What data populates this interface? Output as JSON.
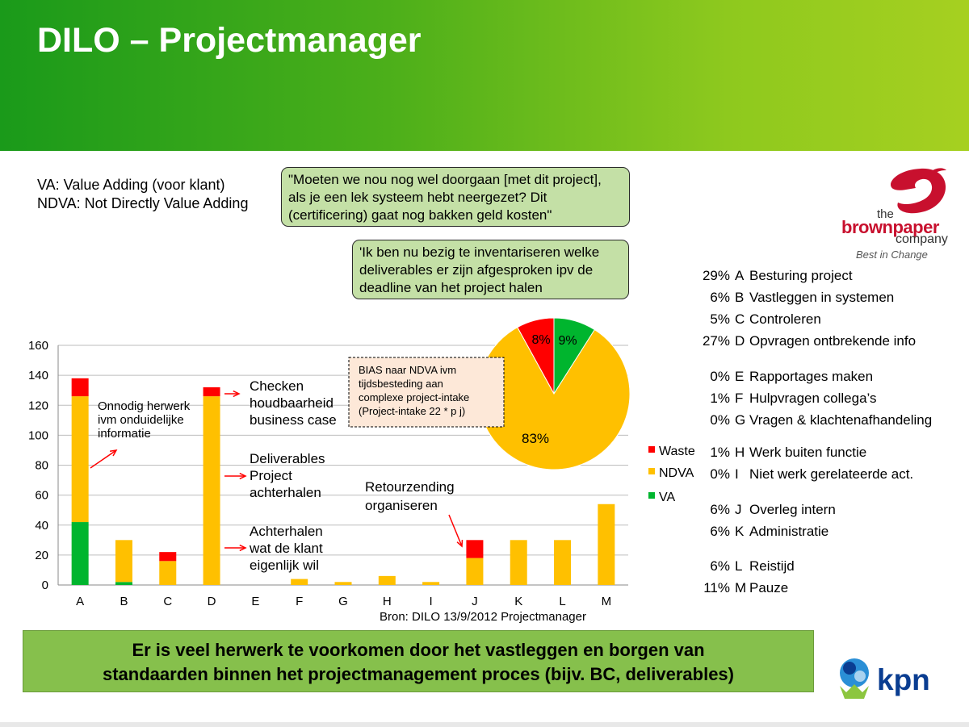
{
  "header": {
    "title": "DILO – Projectmanager"
  },
  "definitions": {
    "va": "VA: Value Adding (voor klant)",
    "ndva": "NDVA: Not Directly Value Adding"
  },
  "quotes": {
    "q1": "\"Moeten we nou nog wel doorgaan [met dit project], als je een lek systeem hebt neergezet? Dit (certificering) gaat nog bakken geld kosten\"",
    "q2": "'Ik ben nu bezig te inventariseren  welke deliverables er zijn afgesproken ipv de deadline van het project halen"
  },
  "logo": {
    "the": "the",
    "brown": "brownpaper",
    "company": "company",
    "tagline": "Best in Change",
    "brand_color": "#c8102e"
  },
  "activities": [
    {
      "pct": "29%",
      "code": "A",
      "label": "Besturing project"
    },
    {
      "pct": "6%",
      "code": "B",
      "label": "Vastleggen in systemen"
    },
    {
      "pct": "5%",
      "code": "C",
      "label": "Controleren"
    },
    {
      "pct": "27%",
      "code": "D",
      "label": "Opvragen ontbrekende info"
    },
    {
      "pct": "0%",
      "code": "E",
      "label": "Rapportages maken"
    },
    {
      "pct": "1%",
      "code": "F",
      "label": "Hulpvragen collega’s"
    },
    {
      "pct": "0%",
      "code": "G",
      "label": "Vragen & klachtenafhandeling"
    },
    {
      "pct": "1%",
      "code": "H",
      "label": "Werk buiten functie"
    },
    {
      "pct": "0%",
      "code": "I",
      "label": "Niet werk gerelateerde act."
    },
    {
      "pct": "6%",
      "code": "J",
      "label": "Overleg intern"
    },
    {
      "pct": "6%",
      "code": "K",
      "label": "Administratie"
    },
    {
      "pct": "6%",
      "code": "L",
      "label": "Reistijd"
    },
    {
      "pct": "11%",
      "code": "M",
      "label": "Pauze"
    }
  ],
  "chart_data": [
    {
      "type": "bar",
      "stacked": true,
      "categories": [
        "A",
        "B",
        "C",
        "D",
        "E",
        "F",
        "G",
        "H",
        "I",
        "J",
        "K",
        "L",
        "M"
      ],
      "series": [
        {
          "name": "VA",
          "color": "#00b52e",
          "values": [
            42,
            2,
            0,
            0,
            0,
            0,
            0,
            0,
            0,
            0,
            0,
            0,
            0
          ]
        },
        {
          "name": "NDVA",
          "color": "#ffc000",
          "values": [
            84,
            28,
            16,
            126,
            0,
            4,
            2,
            6,
            2,
            18,
            30,
            30,
            54
          ]
        },
        {
          "name": "Waste",
          "color": "#ff0000",
          "values": [
            12,
            0,
            6,
            6,
            0,
            0,
            0,
            0,
            0,
            12,
            0,
            0,
            0
          ]
        }
      ],
      "ylim": [
        0,
        160
      ],
      "yticks": [
        0,
        20,
        40,
        60,
        80,
        100,
        120,
        140,
        160
      ],
      "grid": true,
      "legend": [
        "Waste",
        "NDVA",
        "VA"
      ],
      "source": "Bron: DILO 13/9/2012 Projectmanager",
      "annotations": [
        {
          "text": "Onnodig herwerk ivm onduidelijke informatie"
        },
        {
          "text": "Checken houdbaarheid business case"
        },
        {
          "text": "Deliverables Project achterhalen"
        },
        {
          "text": "Achterhalen wat de klant eigenlijk wil"
        },
        {
          "text": "Retourzending organiseren"
        },
        {
          "text": "BIAS naar NDVA ivm tijdsbesteding aan complexe project-intake (Project-intake 22 * p j)"
        }
      ]
    },
    {
      "type": "pie",
      "slices": [
        {
          "name": "Waste",
          "value": 8,
          "label": "8%",
          "color": "#ff0000"
        },
        {
          "name": "VA",
          "value": 9,
          "label": "9%",
          "color": "#00b52e"
        },
        {
          "name": "NDVA",
          "value": 83,
          "label": "83%",
          "color": "#ffc000"
        }
      ]
    }
  ],
  "conclusion": {
    "line1": "Er is veel herwerk te voorkomen door het vastleggen en borgen van",
    "line2": "standaarden binnen het projectmanagement proces (bijv. BC, deliverables)"
  },
  "kpn": {
    "label": "kpn"
  }
}
